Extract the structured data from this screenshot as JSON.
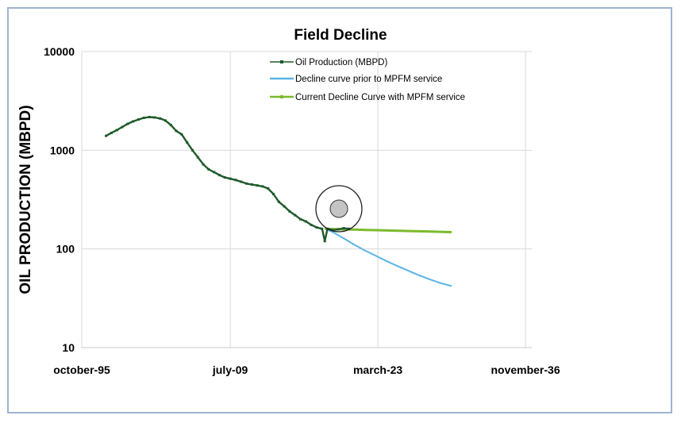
{
  "chart_data": {
    "type": "line",
    "title": "Field Decline",
    "ylabel": "OIL PRODUCTION (MBPD)",
    "xlabel": "",
    "y_scale": "log",
    "ylim": [
      10,
      10000
    ],
    "y_ticks": [
      10,
      100,
      1000,
      10000
    ],
    "y_tick_labels": [
      "10",
      "100",
      "1000",
      "10000"
    ],
    "xlim": [
      "1995-10",
      "2037-06"
    ],
    "x_ticks": [
      "1995-10",
      "2009-07",
      "2023-03",
      "2036-11"
    ],
    "x_tick_labels": [
      "october-95",
      "july-09",
      "march-23",
      "november-36"
    ],
    "grid": true,
    "legend": "top-center",
    "annotation": "circle-marker",
    "colors": {
      "oil": "#1f5a2a",
      "prior": "#5ab4e6",
      "current": "#7dba2c",
      "frame": "#9fb3cf",
      "grid": "#d9d9d9"
    },
    "series": [
      {
        "name": "Oil Production (MBPD)",
        "color": "#1f5a2a",
        "x": [
          "1998-01",
          "1998-07",
          "1999-01",
          "1999-07",
          "2000-01",
          "2000-07",
          "2001-01",
          "2001-07",
          "2002-01",
          "2002-07",
          "2003-01",
          "2003-07",
          "2004-01",
          "2004-07",
          "2005-01",
          "2005-07",
          "2006-01",
          "2006-07",
          "2007-01",
          "2007-07",
          "2008-01",
          "2008-07",
          "2009-01",
          "2009-07",
          "2010-01",
          "2010-07",
          "2011-01",
          "2011-07",
          "2012-01",
          "2012-07",
          "2013-01",
          "2013-07",
          "2014-01",
          "2014-07",
          "2015-01",
          "2015-07",
          "2016-01",
          "2016-07",
          "2017-01",
          "2017-07",
          "2018-01",
          "2018-04",
          "2018-07",
          "2019-01",
          "2019-07",
          "2020-01",
          "2020-07"
        ],
        "y": [
          1400,
          1500,
          1600,
          1720,
          1850,
          1960,
          2050,
          2130,
          2170,
          2150,
          2100,
          2000,
          1800,
          1570,
          1450,
          1200,
          1000,
          850,
          720,
          640,
          600,
          560,
          530,
          515,
          500,
          480,
          460,
          450,
          440,
          430,
          410,
          360,
          300,
          270,
          240,
          220,
          200,
          190,
          175,
          165,
          160,
          120,
          160,
          155,
          158,
          162,
          160
        ]
      },
      {
        "name": "Decline curve prior to MPFM service",
        "color": "#5ab4e6",
        "x": [
          "2018-04",
          "2019-01",
          "2020-01",
          "2021-01",
          "2022-01",
          "2023-01",
          "2024-01",
          "2025-01",
          "2026-01",
          "2027-01",
          "2028-01",
          "2029-01",
          "2030-01"
        ],
        "y": [
          160,
          148,
          128,
          110,
          96,
          85,
          75,
          67,
          60,
          54,
          49,
          45,
          42
        ]
      },
      {
        "name": "Current Decline Curve with MPFM service",
        "color": "#7dba2c",
        "x": [
          "2018-04",
          "2019-01",
          "2020-01",
          "2021-01",
          "2022-01",
          "2023-01",
          "2024-01",
          "2025-01",
          "2026-01",
          "2027-01",
          "2028-01",
          "2029-01",
          "2030-01"
        ],
        "y": [
          160,
          159,
          158,
          157,
          156,
          155,
          154,
          153,
          152,
          151,
          150,
          149,
          148
        ]
      }
    ]
  }
}
